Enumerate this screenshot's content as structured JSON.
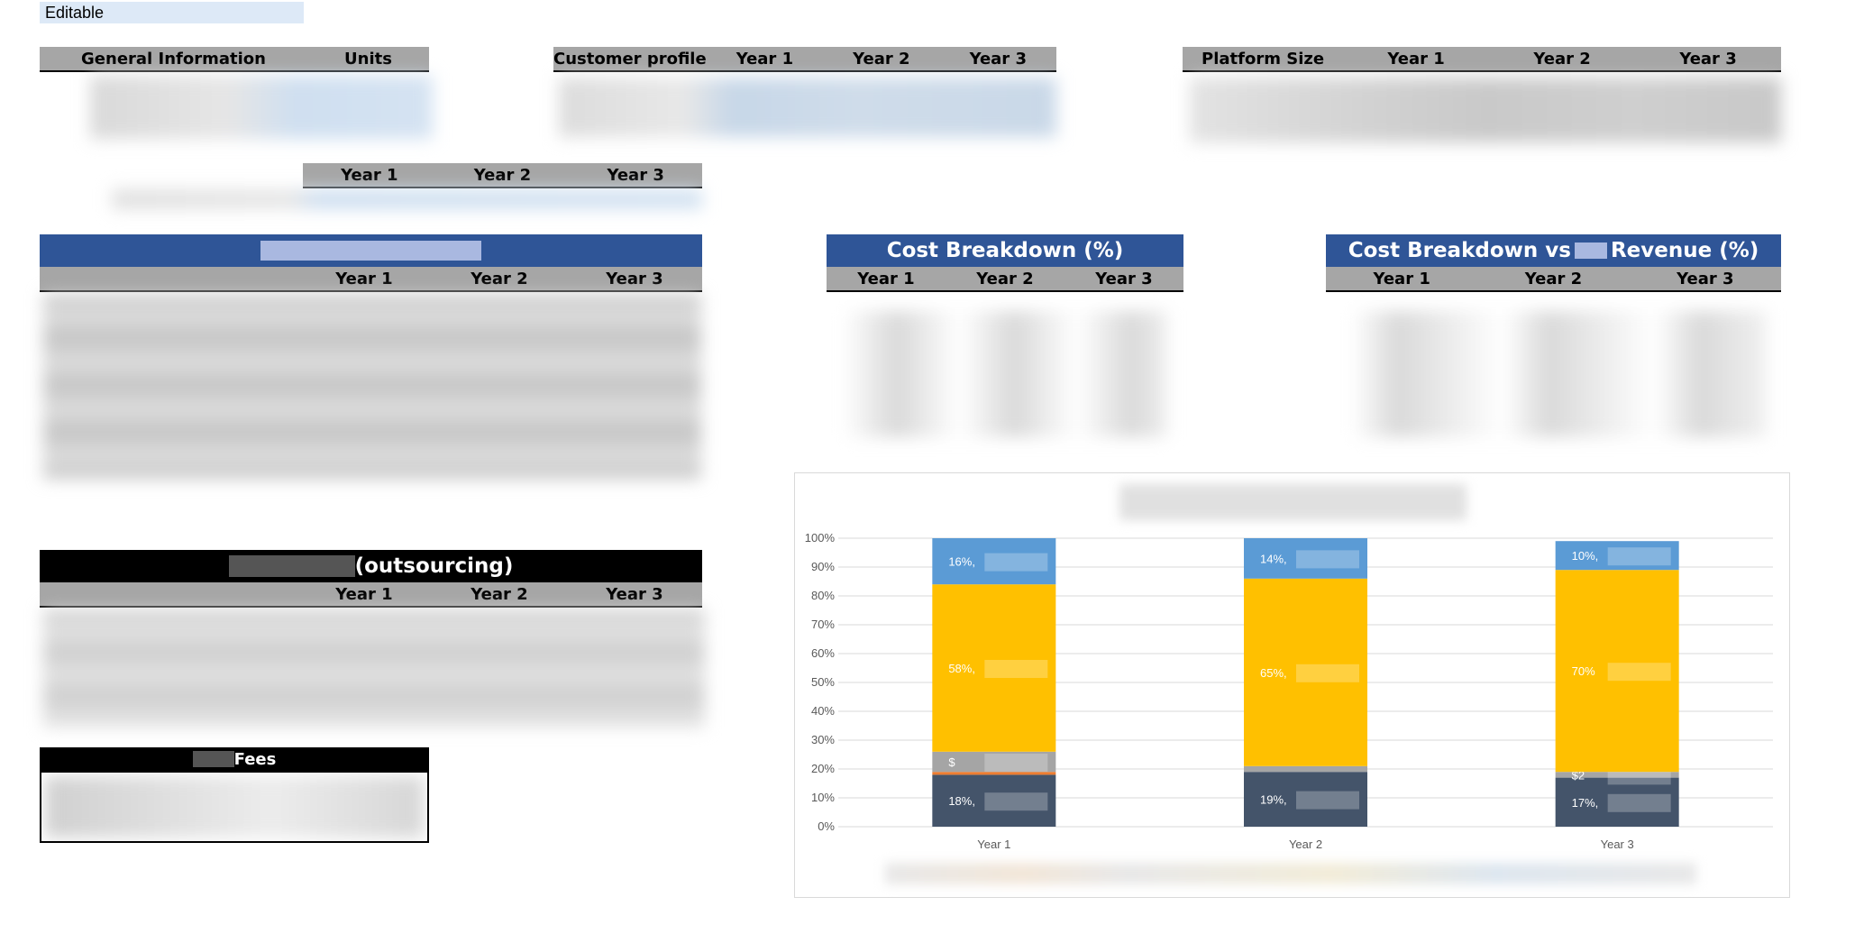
{
  "editable_label": "Editable",
  "general_info": {
    "headers": [
      "General Information",
      "Units"
    ]
  },
  "customer_profile": {
    "headers": [
      "Customer profile",
      "Year 1",
      "Year 2",
      "Year 3"
    ]
  },
  "platform_size": {
    "headers": [
      "Platform Size",
      "Year 1",
      "Year 2",
      "Year 3"
    ]
  },
  "small_years": {
    "headers": [
      "Year 1",
      "Year 2",
      "Year 3"
    ]
  },
  "main_table": {
    "headers": [
      "Year 1",
      "Year 2",
      "Year 3"
    ]
  },
  "cost_breakdown": {
    "title": "Cost Breakdown (%)",
    "headers": [
      "Year 1",
      "Year 2",
      "Year 3"
    ]
  },
  "cost_vs_revenue": {
    "title_prefix": "Cost Breakdown vs",
    "title_suffix": "Revenue (%)",
    "headers": [
      "Year 1",
      "Year 2",
      "Year 3"
    ]
  },
  "outsourcing": {
    "title_suffix": "(outsourcing)",
    "headers": [
      "Year 1",
      "Year 2",
      "Year 3"
    ]
  },
  "fees": {
    "title": "Fees"
  },
  "chart_data": {
    "type": "bar",
    "stacked": true,
    "categories": [
      "Year 1",
      "Year 2",
      "Year 3"
    ],
    "y_ticks": [
      "0%",
      "10%",
      "20%",
      "30%",
      "40%",
      "50%",
      "60%",
      "70%",
      "80%",
      "90%",
      "100%"
    ],
    "ylim": [
      0,
      100
    ],
    "series": [
      {
        "color": "#44546a",
        "values": [
          18,
          19,
          17
        ],
        "labels": [
          "18%,",
          "19%,",
          "17%,"
        ]
      },
      {
        "color": "#ed7d31",
        "values": [
          1,
          0,
          0
        ],
        "labels": [
          "",
          "",
          ""
        ]
      },
      {
        "color": "#a5a5a5",
        "values": [
          7,
          2,
          2
        ],
        "labels": [
          "$",
          "",
          "$2"
        ]
      },
      {
        "color": "#ffc000",
        "values": [
          58,
          65,
          70
        ],
        "labels": [
          "58%,",
          "65%,",
          "70%"
        ]
      },
      {
        "color": "#5b9bd5",
        "values": [
          16,
          14,
          10
        ],
        "labels": [
          "16%,",
          "14%,",
          "10%,"
        ]
      }
    ]
  }
}
